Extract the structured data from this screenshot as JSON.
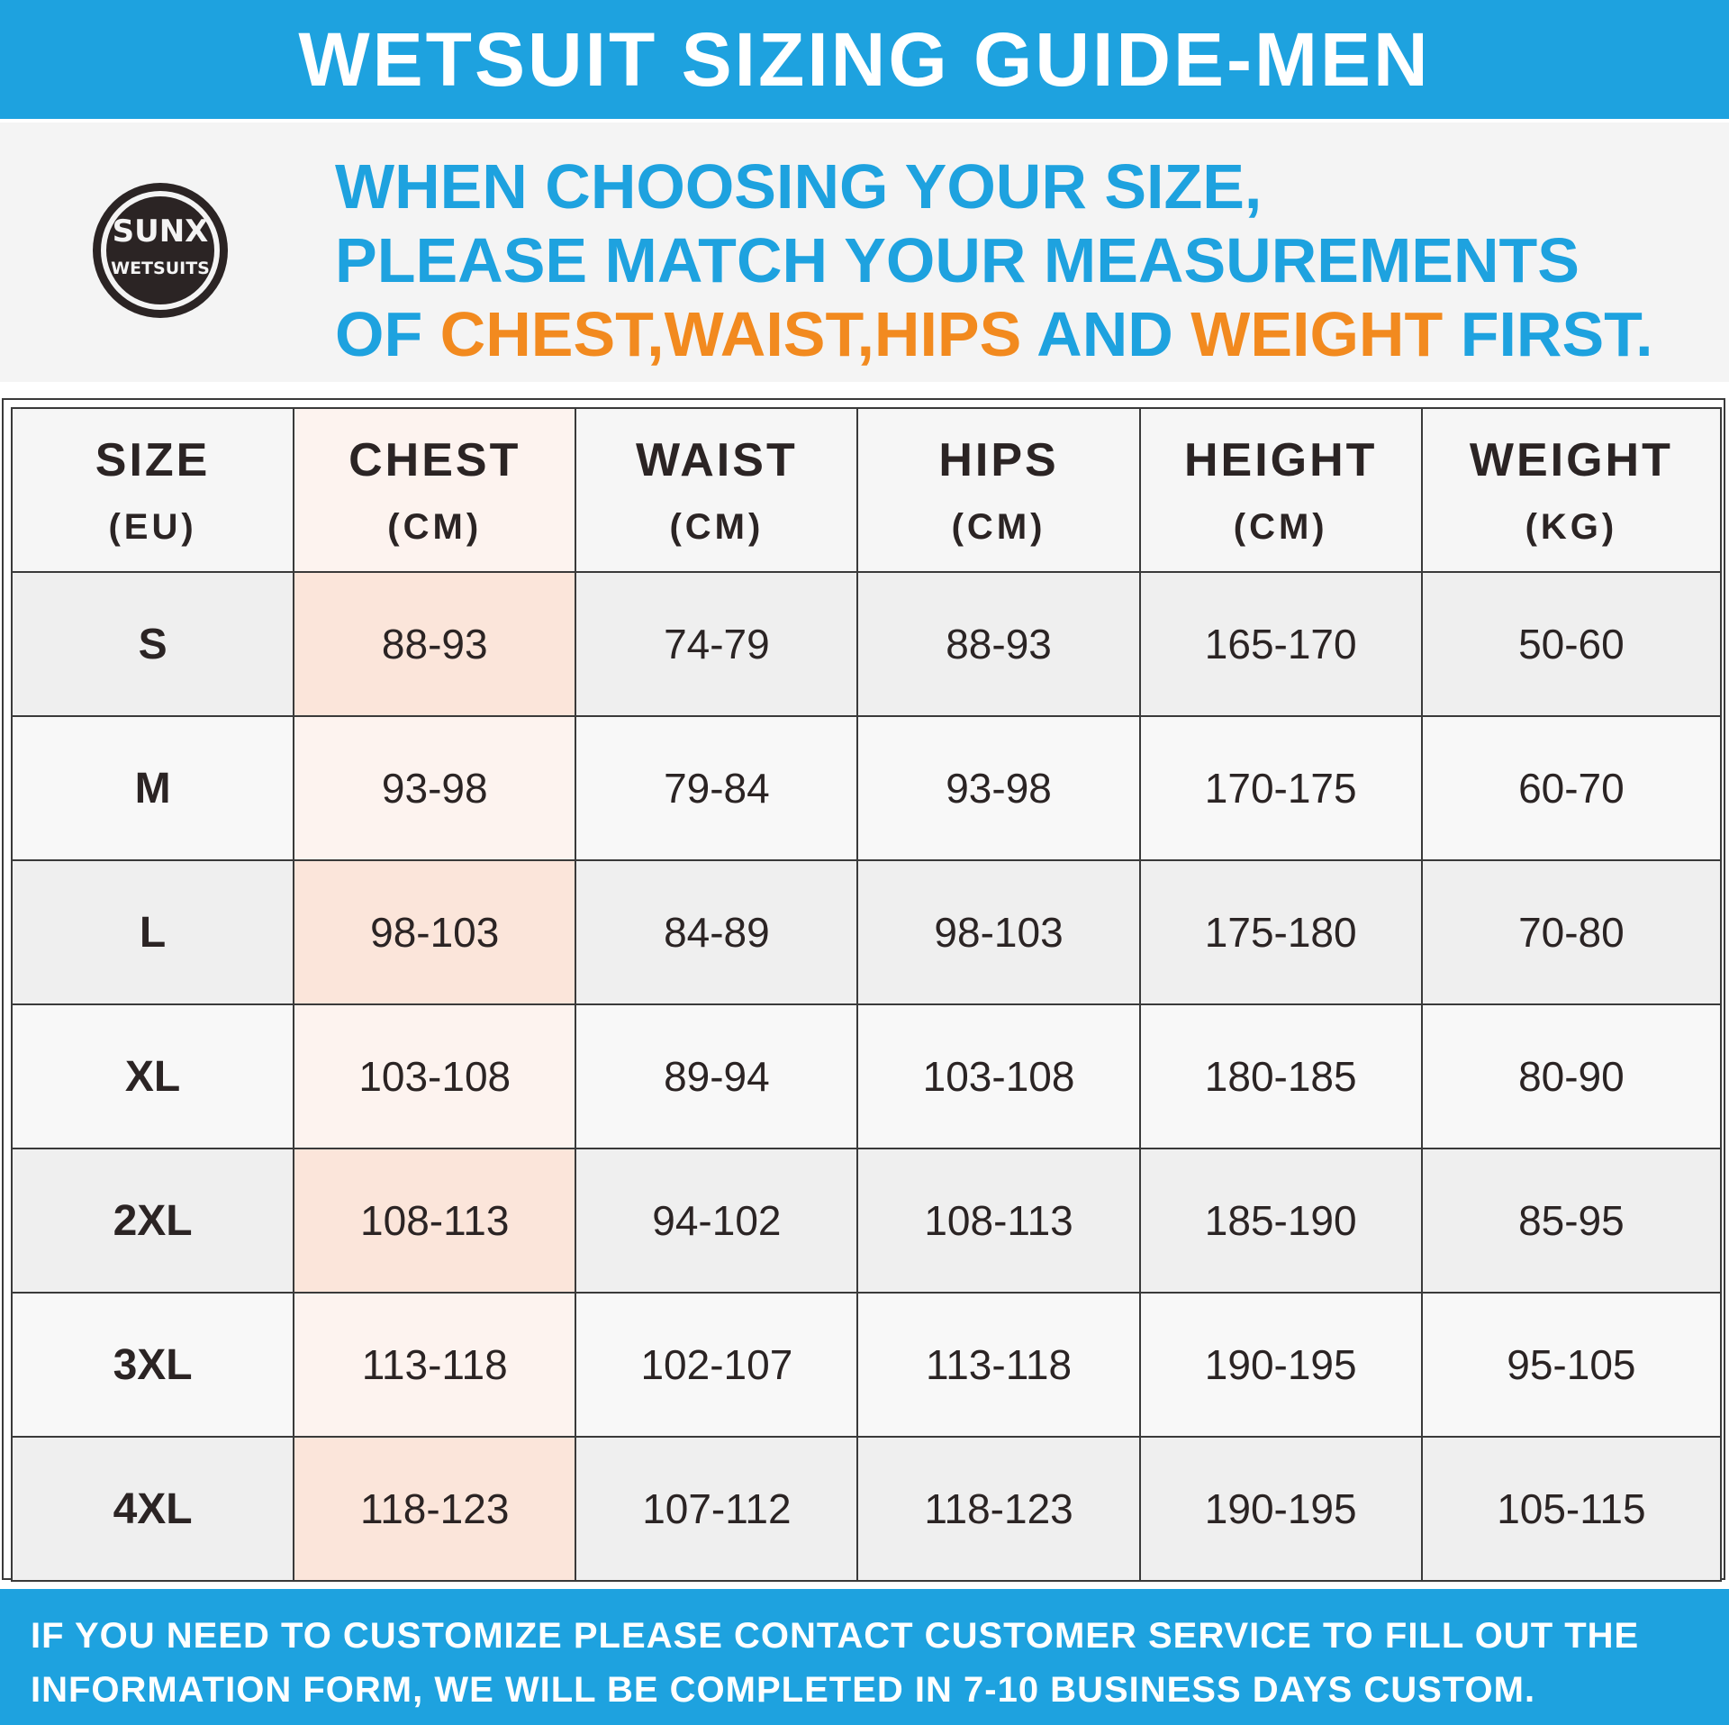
{
  "title": "WETSUIT SIZING GUIDE-MEN",
  "logo": {
    "text_line1": "SUNX",
    "text_line2": "WETSUITS",
    "icon": "brand-logo"
  },
  "intro": {
    "line1": "WHEN CHOOSING YOUR SIZE,",
    "line2": "PLEASE MATCH YOUR MEASUREMENTS",
    "line3_prefix": "OF ",
    "line3_highlight1": "CHEST,WAIST,HIPS",
    "line3_mid": " AND ",
    "line3_highlight2": "WEIGHT",
    "line3_suffix": " FIRST."
  },
  "colors": {
    "accent_blue": "#1ea2df",
    "highlight_orange": "#f28a1f",
    "chest_tint": "#fbe5da"
  },
  "table": {
    "headers": [
      {
        "name": "SIZE",
        "unit": "(EU)"
      },
      {
        "name": "CHEST",
        "unit": "(CM)"
      },
      {
        "name": "WAIST",
        "unit": "(CM)"
      },
      {
        "name": "HIPS",
        "unit": "(CM)"
      },
      {
        "name": "HEIGHT",
        "unit": "(CM)"
      },
      {
        "name": "WEIGHT",
        "unit": "(KG)"
      }
    ],
    "rows": [
      [
        "S",
        "88-93",
        "74-79",
        "88-93",
        "165-170",
        "50-60"
      ],
      [
        "M",
        "93-98",
        "79-84",
        "93-98",
        "170-175",
        "60-70"
      ],
      [
        "L",
        "98-103",
        "84-89",
        "98-103",
        "175-180",
        "70-80"
      ],
      [
        "XL",
        "103-108",
        "89-94",
        "103-108",
        "180-185",
        "80-90"
      ],
      [
        "2XL",
        "108-113",
        "94-102",
        "108-113",
        "185-190",
        "85-95"
      ],
      [
        "3XL",
        "113-118",
        "102-107",
        "113-118",
        "190-195",
        "95-105"
      ],
      [
        "4XL",
        "118-123",
        "107-112",
        "118-123",
        "190-195",
        "105-115"
      ]
    ]
  },
  "footer": {
    "line1": "IF YOU NEED TO CUSTOMIZE PLEASE CONTACT CUSTOMER SERVICE TO FILL OUT THE",
    "line2": "INFORMATION FORM, WE WILL BE COMPLETED IN 7-10 BUSINESS DAYS CUSTOM."
  }
}
